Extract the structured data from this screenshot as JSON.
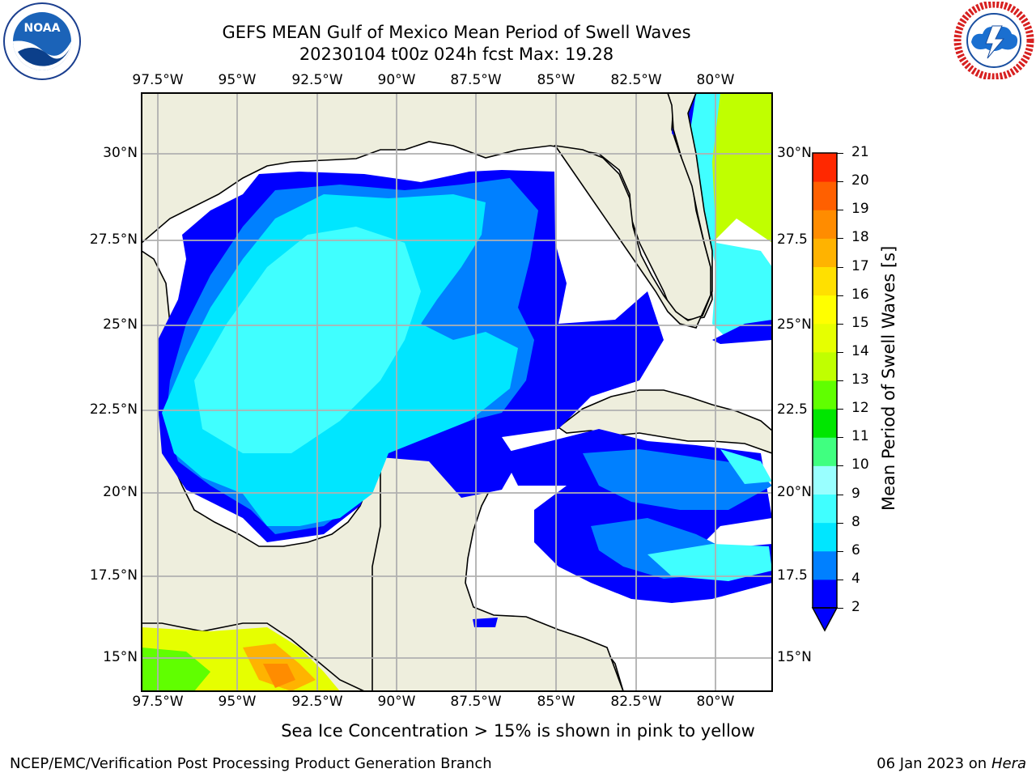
{
  "header": {
    "title_line1": "GEFS MEAN Gulf of Mexico Mean Period of Swell Waves",
    "title_line2": "20230104 t00z 024h fcst   Max: 19.28"
  },
  "logos": {
    "left": {
      "name": "NOAA",
      "ring_text": "NATIONAL OCEANIC AND ATMOSPHERIC ADMINISTRATION",
      "bottom_text": "U.S. DEPARTMENT OF COMMERCE"
    },
    "right": {
      "ring_text": "NATIONAL WEATHER SERVICE"
    }
  },
  "map": {
    "lon_ticks": [
      "97.5°W",
      "95°W",
      "92.5°W",
      "90°W",
      "87.5°W",
      "85°W",
      "82.5°W",
      "80°W"
    ],
    "lat_ticks_left": [
      "30°N",
      "27.5°N",
      "25°N",
      "22.5°N",
      "20°N",
      "17.5°N",
      "15°N"
    ],
    "lat_ticks_right": [
      "30°N",
      "27.5",
      "25°N",
      "22.5",
      "20°N",
      "17.5",
      "15°N"
    ],
    "colors": {
      "land": "#eeeedd",
      "ocean_blank": "#ffffff",
      "grid": "#b0b0b0",
      "coast": "#000000"
    }
  },
  "colorbar": {
    "label": "Mean Period of Swell Waves [s]",
    "levels": [
      "2",
      "4",
      "6",
      "8",
      "9",
      "10",
      "11",
      "12",
      "13",
      "14",
      "15",
      "16",
      "17",
      "18",
      "19",
      "20",
      "21"
    ],
    "colors": [
      "#0000ff",
      "#0080ff",
      "#00e6ff",
      "#40ffff",
      "#99ffff",
      "#40ff80",
      "#00e600",
      "#60ff00",
      "#c0ff00",
      "#e6ff00",
      "#ffff00",
      "#ffe000",
      "#ffb300",
      "#ff8c00",
      "#ff6000",
      "#ff2800",
      "#ff0000"
    ]
  },
  "footer": {
    "note": "Sea Ice Concentration > 15% is shown in pink to yellow",
    "credit": "NCEP/EMC/Verification Post Processing Product Generation Branch",
    "date": "06 Jan 2023 on ",
    "host": "Hera"
  }
}
